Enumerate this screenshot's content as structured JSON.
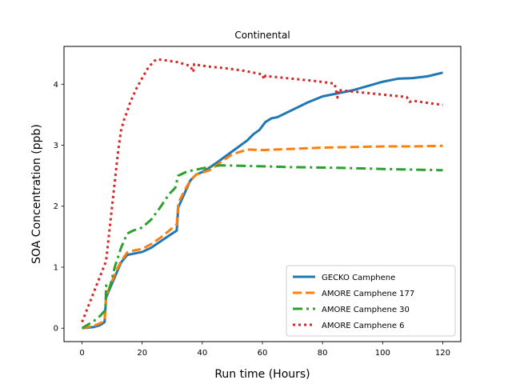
{
  "chart_data": {
    "type": "line",
    "title": "Continental",
    "xlabel": "Run time (Hours)",
    "ylabel": "SOA Concentration (ppb)",
    "xlim": [
      -6,
      126
    ],
    "ylim": [
      -0.22,
      4.62
    ],
    "xticks": [
      0,
      20,
      40,
      60,
      80,
      100,
      120
    ],
    "yticks": [
      0,
      1,
      2,
      3,
      4
    ],
    "grid": false,
    "legend_position": "lower-right",
    "series": [
      {
        "name": "GECKO Camphene",
        "color": "#1f77b4",
        "style": "solid",
        "x": [
          0,
          2,
          4,
          6,
          7.5,
          8,
          9,
          11,
          13,
          15,
          17,
          20,
          23,
          26,
          29,
          31.5,
          32,
          34,
          36,
          38,
          40,
          42,
          45,
          50,
          55,
          57,
          59,
          61,
          63,
          65,
          70,
          75,
          80,
          82,
          84,
          86,
          88,
          90,
          95,
          100,
          105,
          110,
          115,
          120
        ],
        "y": [
          0,
          0.01,
          0.02,
          0.05,
          0.1,
          0.5,
          0.62,
          0.85,
          1.08,
          1.2,
          1.22,
          1.25,
          1.32,
          1.42,
          1.52,
          1.6,
          1.98,
          2.2,
          2.42,
          2.52,
          2.56,
          2.62,
          2.72,
          2.9,
          3.08,
          3.18,
          3.25,
          3.38,
          3.44,
          3.46,
          3.58,
          3.7,
          3.8,
          3.82,
          3.84,
          3.86,
          3.88,
          3.9,
          3.97,
          4.04,
          4.09,
          4.1,
          4.13,
          4.19
        ]
      },
      {
        "name": "AMORE Camphene 177",
        "color": "#ff7f0e",
        "style": "dashed",
        "x": [
          0,
          2,
          4,
          6,
          7.5,
          8,
          9,
          11,
          13,
          15,
          17,
          20,
          23,
          26,
          29,
          31.5,
          32,
          34,
          36,
          38,
          40,
          43,
          46,
          50,
          55,
          60,
          70,
          80,
          90,
          100,
          110,
          120
        ],
        "y": [
          0,
          0.02,
          0.04,
          0.08,
          0.12,
          0.52,
          0.65,
          0.9,
          1.1,
          1.24,
          1.27,
          1.3,
          1.38,
          1.48,
          1.6,
          1.7,
          2.05,
          2.25,
          2.42,
          2.52,
          2.55,
          2.6,
          2.72,
          2.85,
          2.93,
          2.92,
          2.94,
          2.96,
          2.97,
          2.98,
          2.98,
          2.99
        ]
      },
      {
        "name": "AMORE Camphene 30",
        "color": "#2ca02c",
        "style": "dashdot",
        "x": [
          0,
          2,
          4,
          6,
          7.8,
          8,
          9,
          11,
          13,
          15,
          17,
          20,
          23,
          26,
          29,
          31,
          32,
          35,
          38,
          42,
          46,
          55,
          70,
          85,
          100,
          110,
          120
        ],
        "y": [
          0,
          0.06,
          0.12,
          0.2,
          0.3,
          0.7,
          0.62,
          1.02,
          1.32,
          1.55,
          1.6,
          1.65,
          1.78,
          1.98,
          2.2,
          2.3,
          2.5,
          2.57,
          2.6,
          2.64,
          2.67,
          2.66,
          2.64,
          2.63,
          2.61,
          2.6,
          2.59
        ]
      },
      {
        "name": "AMORE Camphene 6",
        "color": "#d62728",
        "style": "dotted",
        "x": [
          0,
          2,
          4,
          6,
          8,
          10,
          12,
          13,
          14,
          15,
          16,
          18,
          20,
          22,
          24,
          25,
          28,
          32,
          36,
          37,
          37.3,
          38,
          42,
          48,
          54,
          60,
          60.5,
          61,
          62,
          66,
          72,
          78,
          84,
          85,
          85.5,
          86,
          92,
          98,
          104,
          108,
          109,
          110,
          114,
          120
        ],
        "y": [
          0.1,
          0.35,
          0.6,
          0.85,
          1.1,
          2.0,
          2.9,
          3.25,
          3.42,
          3.55,
          3.7,
          3.92,
          4.1,
          4.27,
          4.38,
          4.41,
          4.39,
          4.36,
          4.3,
          4.2,
          4.33,
          4.32,
          4.29,
          4.26,
          4.22,
          4.16,
          4.08,
          4.14,
          4.13,
          4.11,
          4.08,
          4.05,
          4.01,
          3.78,
          3.92,
          3.9,
          3.87,
          3.84,
          3.81,
          3.79,
          3.71,
          3.73,
          3.7,
          3.66
        ]
      }
    ]
  }
}
